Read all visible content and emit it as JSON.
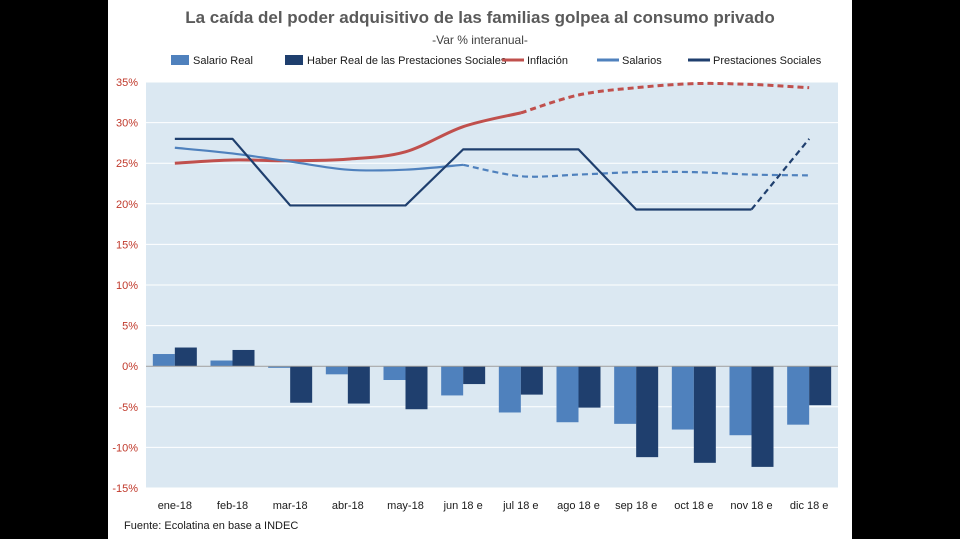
{
  "chart_data": {
    "type": "bar+line",
    "title": "La caída del poder adquisitivo de las familias golpea al consumo privado",
    "subtitle": "-Var % interanual-",
    "source": "Fuente: Ecolatina en base a INDEC",
    "categories": [
      "ene-18",
      "feb-18",
      "mar-18",
      "abr-18",
      "may-18",
      "jun 18 e",
      "jul 18 e",
      "ago 18 e",
      "sep 18 e",
      "oct 18 e",
      "nov 18 e",
      "dic 18 e"
    ],
    "ylim": [
      -15,
      35
    ],
    "yticks": [
      -15,
      -10,
      -5,
      0,
      5,
      10,
      15,
      20,
      25,
      30,
      35
    ],
    "grid": true,
    "legend_position": "top",
    "bar_series": [
      {
        "name": "Salario Real",
        "color": "#4f81bd",
        "values": [
          1.5,
          0.7,
          -0.2,
          -1.0,
          -1.7,
          -3.6,
          -5.7,
          -6.9,
          -7.1,
          -7.8,
          -8.5,
          -7.2
        ]
      },
      {
        "name": "Haber Real de las Prestaciones Sociales",
        "color": "#1f3f6e",
        "values": [
          2.3,
          2.0,
          -4.5,
          -4.6,
          -5.3,
          -2.2,
          -3.5,
          -5.1,
          -11.2,
          -11.9,
          -12.4,
          -4.8
        ]
      }
    ],
    "line_series": [
      {
        "name": "Inflación",
        "color": "#c0504d",
        "dashed_from_index": 6,
        "values": [
          25.0,
          25.4,
          25.3,
          25.5,
          26.4,
          29.5,
          31.2,
          33.4,
          34.3,
          34.8,
          34.7,
          34.3
        ]
      },
      {
        "name": "Salarios",
        "color": "#4f81bd",
        "dashed_from_index": 5,
        "values": [
          26.9,
          26.2,
          25.2,
          24.2,
          24.2,
          24.8,
          23.4,
          23.6,
          23.9,
          23.9,
          23.6,
          23.5
        ]
      },
      {
        "name": "Prestaciones Sociales",
        "color": "#1f3f6e",
        "dashed_from_index": 10,
        "values": [
          28.0,
          28.0,
          19.8,
          19.8,
          19.8,
          26.7,
          26.7,
          26.7,
          19.3,
          19.3,
          19.3,
          28.0
        ]
      }
    ]
  }
}
